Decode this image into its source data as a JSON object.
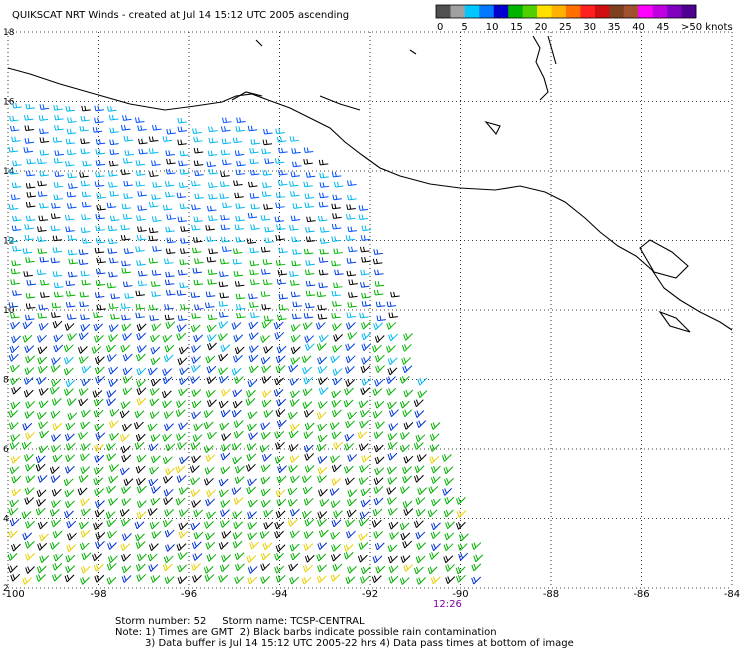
{
  "title": "QUIKSCAT NRT Winds - created at Jul 14 15:12 UTC 2005 ascending",
  "legend": {
    "labels": [
      "0",
      "5",
      "10",
      "15",
      "20",
      "25",
      "30",
      "35",
      "40",
      "45",
      ">50 knots"
    ],
    "colors": [
      "#505050",
      "#a0a0a0",
      "#00c8ff",
      "#0078ff",
      "#0000d0",
      "#00b400",
      "#50d000",
      "#ffe000",
      "#ffb000",
      "#ff7000",
      "#ff2020",
      "#d01010",
      "#804020",
      "#a05030",
      "#ff00ff",
      "#c000e0",
      "#8000c0",
      "#500090"
    ]
  },
  "map": {
    "lat_labels": [
      "18",
      "16",
      "14",
      "12",
      "10",
      "8",
      "6",
      "4",
      "2"
    ],
    "lon_labels": [
      "-100",
      "-98",
      "-96",
      "-94",
      "-92",
      "-90",
      "-88",
      "-86",
      "-84"
    ]
  },
  "pass_time": "12:26",
  "footer": {
    "storm": "Storm number: 52     Storm name: TCSP-CENTRAL",
    "note1": "Note: 1) Times are GMT  2) Black barbs indicate possible rain contamination",
    "note2": "3) Data buffer is Jul 14 15:12 UTC 2005-22 hrs 4) Data pass times at bottom of image"
  }
}
